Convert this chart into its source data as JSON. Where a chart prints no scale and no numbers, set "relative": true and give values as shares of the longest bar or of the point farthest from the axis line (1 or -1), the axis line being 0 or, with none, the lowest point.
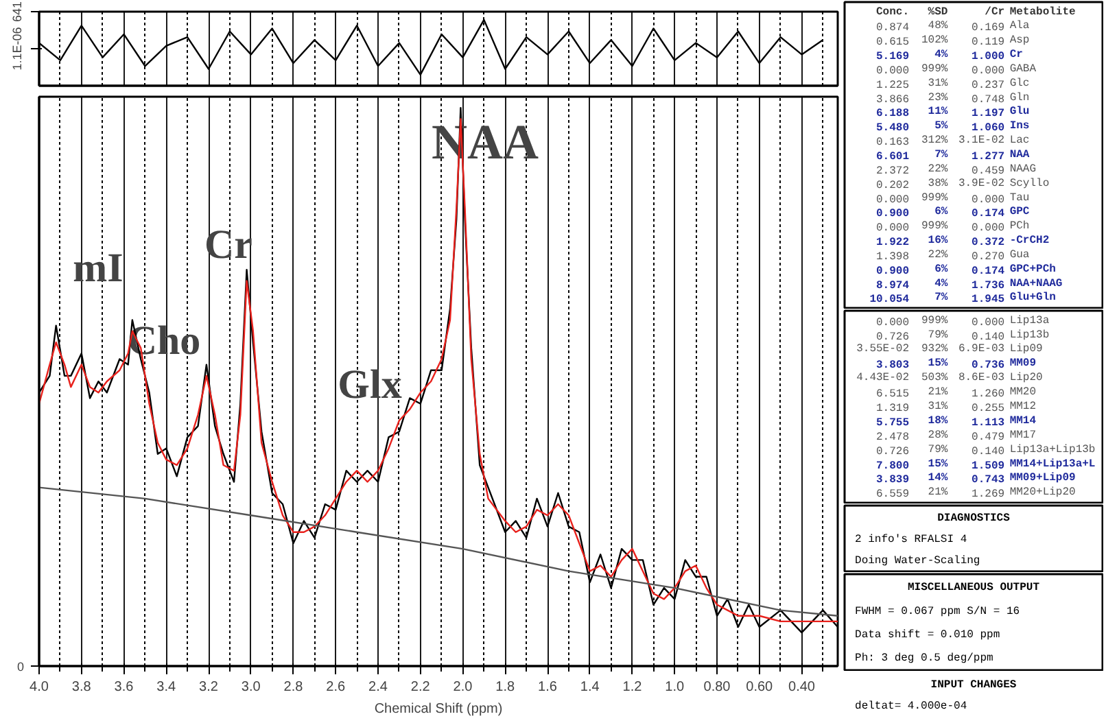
{
  "chart_data": [
    {
      "type": "line",
      "x": [
        4.0,
        3.9,
        3.8,
        3.7,
        3.6,
        3.5,
        3.4,
        3.3,
        3.2,
        3.1,
        3.0,
        2.9,
        2.8,
        2.7,
        2.6,
        2.5,
        2.4,
        2.3,
        2.2,
        2.1,
        2.0,
        1.9,
        1.8,
        1.7,
        1.6,
        1.5,
        1.4,
        1.3,
        1.2,
        1.1,
        1.0,
        0.9,
        0.8,
        0.7,
        0.6,
        0.5,
        0.4,
        0.3
      ],
      "series": [
        {
          "color": "#000000",
          "values": [
            100,
            -200,
            400,
            -150,
            250,
            -300,
            50,
            200,
            -350,
            300,
            -100,
            350,
            -250,
            150,
            -200,
            400,
            -300,
            100,
            -450,
            250,
            -150,
            500,
            -350,
            200,
            -100,
            300,
            -250,
            150,
            -300,
            350,
            -200,
            100,
            -150,
            300,
            -250,
            200,
            -100,
            150
          ]
        }
      ],
      "xlim": [
        4.0,
        0.23
      ],
      "ylim": [
        -641,
        641
      ],
      "yticks": [
        641,
        {
          "value": 1.1e-06,
          "label": "1.1E-06"
        }
      ],
      "xticks": [
        4.0,
        3.8,
        3.6,
        3.4,
        3.2,
        3.0,
        2.8,
        2.6,
        2.4,
        2.2,
        2.0,
        1.8,
        1.6,
        1.4,
        1.2,
        1.0,
        0.8,
        0.6,
        0.4,
        {
          "value": 3.9,
          "label": null
        },
        {
          "value": 3.7,
          "label": null
        },
        {
          "value": 3.5,
          "label": null
        },
        {
          "value": 3.3,
          "label": null
        },
        {
          "value": 3.1,
          "label": null
        },
        {
          "value": 2.9,
          "label": null
        },
        {
          "value": 2.7,
          "label": null
        },
        {
          "value": 2.5,
          "label": null
        },
        {
          "value": 2.3,
          "label": null
        },
        {
          "value": 2.1,
          "label": null
        },
        {
          "value": 1.9,
          "label": null
        },
        {
          "value": 1.7,
          "label": null
        },
        {
          "value": 1.5,
          "label": null
        },
        {
          "value": 1.3,
          "label": null
        },
        {
          "value": 1.1,
          "label": null
        },
        {
          "value": 0.9,
          "label": null
        },
        {
          "value": 0.7,
          "label": null
        },
        {
          "value": 0.5,
          "label": null
        },
        {
          "value": 0.3,
          "label": null
        }
      ],
      "tick_labels": "y",
      "grid": "x"
    },
    {
      "type": "line",
      "relative": true,
      "xlabel": "Chemical Shift (ppm)",
      "xlim": [
        4.0,
        0.23
      ],
      "xticks": [
        {
          "value": 4.0,
          "label": "4.0"
        },
        3.8,
        3.6,
        3.4,
        3.2,
        {
          "value": 3.0,
          "label": "3.0"
        },
        2.8,
        2.6,
        2.4,
        2.2,
        {
          "value": 2.0,
          "label": "2.0"
        },
        1.8,
        1.6,
        1.4,
        1.2,
        {
          "value": 1.0,
          "label": "1.0"
        },
        {
          "value": 0.8,
          "label": "0.80"
        },
        {
          "value": 0.6,
          "label": "0.60"
        },
        {
          "value": 0.4,
          "label": "0.40"
        },
        {
          "value": 3.9,
          "label": null
        },
        {
          "value": 3.7,
          "label": null
        },
        {
          "value": 3.5,
          "label": null
        },
        {
          "value": 3.3,
          "label": null
        },
        {
          "value": 3.1,
          "label": null
        },
        {
          "value": 2.9,
          "label": null
        },
        {
          "value": 2.7,
          "label": null
        },
        {
          "value": 2.5,
          "label": null
        },
        {
          "value": 2.3,
          "label": null
        },
        {
          "value": 2.1,
          "label": null
        },
        {
          "value": 1.9,
          "label": null
        },
        {
          "value": 1.7,
          "label": null
        },
        {
          "value": 1.5,
          "label": null
        },
        {
          "value": 1.3,
          "label": null
        },
        {
          "value": 1.1,
          "label": null
        },
        {
          "value": 0.9,
          "label": null
        },
        {
          "value": 0.7,
          "label": null
        },
        {
          "value": 0.5,
          "label": null
        },
        {
          "value": 0.3,
          "label": null
        }
      ],
      "grid": "x",
      "x": [
        4.0,
        3.95,
        3.92,
        3.88,
        3.85,
        3.8,
        3.76,
        3.72,
        3.68,
        3.62,
        3.58,
        3.56,
        3.52,
        3.48,
        3.44,
        3.4,
        3.35,
        3.3,
        3.25,
        3.21,
        3.17,
        3.13,
        3.08,
        3.05,
        3.02,
        2.99,
        2.95,
        2.9,
        2.85,
        2.8,
        2.75,
        2.7,
        2.65,
        2.6,
        2.55,
        2.5,
        2.45,
        2.4,
        2.35,
        2.3,
        2.25,
        2.2,
        2.15,
        2.1,
        2.06,
        2.03,
        2.01,
        1.99,
        1.96,
        1.92,
        1.88,
        1.8,
        1.75,
        1.7,
        1.65,
        1.6,
        1.55,
        1.5,
        1.45,
        1.4,
        1.35,
        1.3,
        1.25,
        1.2,
        1.15,
        1.1,
        1.05,
        1.0,
        0.95,
        0.9,
        0.85,
        0.8,
        0.75,
        0.7,
        0.65,
        0.6,
        0.5,
        0.4,
        0.3,
        0.23
      ],
      "series": [
        {
          "color": "#000000",
          "values": [
            0.49,
            0.52,
            0.61,
            0.52,
            0.52,
            0.56,
            0.48,
            0.51,
            0.49,
            0.55,
            0.54,
            0.62,
            0.55,
            0.49,
            0.38,
            0.39,
            0.34,
            0.41,
            0.43,
            0.54,
            0.43,
            0.38,
            0.33,
            0.47,
            0.71,
            0.58,
            0.42,
            0.31,
            0.29,
            0.22,
            0.26,
            0.23,
            0.29,
            0.28,
            0.35,
            0.33,
            0.35,
            0.33,
            0.41,
            0.42,
            0.48,
            0.47,
            0.53,
            0.53,
            0.64,
            0.8,
            1.0,
            0.8,
            0.57,
            0.36,
            0.32,
            0.24,
            0.26,
            0.23,
            0.3,
            0.25,
            0.31,
            0.25,
            0.24,
            0.15,
            0.2,
            0.14,
            0.21,
            0.19,
            0.19,
            0.11,
            0.14,
            0.12,
            0.19,
            0.16,
            0.16,
            0.09,
            0.12,
            0.07,
            0.11,
            0.07,
            0.1,
            0.06,
            0.1,
            0.07
          ]
        },
        {
          "color": "#e8211c",
          "values": [
            0.47,
            0.54,
            0.58,
            0.54,
            0.5,
            0.54,
            0.5,
            0.49,
            0.51,
            0.53,
            0.56,
            0.6,
            0.57,
            0.47,
            0.4,
            0.37,
            0.36,
            0.39,
            0.45,
            0.52,
            0.45,
            0.36,
            0.35,
            0.45,
            0.69,
            0.6,
            0.4,
            0.33,
            0.27,
            0.24,
            0.24,
            0.25,
            0.27,
            0.3,
            0.33,
            0.35,
            0.33,
            0.35,
            0.39,
            0.44,
            0.46,
            0.49,
            0.51,
            0.55,
            0.62,
            0.82,
            0.98,
            0.82,
            0.55,
            0.38,
            0.3,
            0.26,
            0.24,
            0.25,
            0.28,
            0.27,
            0.29,
            0.27,
            0.22,
            0.17,
            0.18,
            0.16,
            0.19,
            0.21,
            0.17,
            0.13,
            0.12,
            0.14,
            0.17,
            0.18,
            0.14,
            0.11,
            0.1,
            0.09,
            0.09,
            0.09,
            0.08,
            0.08,
            0.08,
            0.08
          ]
        },
        {
          "color": "#555555",
          "x": [
            4.0,
            3.5,
            3.0,
            2.5,
            2.0,
            1.5,
            1.0,
            0.5,
            0.23
          ],
          "values": [
            0.32,
            0.3,
            0.27,
            0.24,
            0.21,
            0.17,
            0.14,
            0.1,
            0.09
          ]
        }
      ],
      "annotations": [
        "NAA",
        "mI",
        "Cho",
        "Cr",
        "Glx",
        "0"
      ]
    },
    {
      "type": "other",
      "cell_labels": [
        [
          "Conc.",
          "%SD",
          "/Cr",
          "Metabolite"
        ],
        [
          "0.874",
          "48%",
          "0.169",
          "Ala"
        ],
        [
          "0.615",
          "102%",
          "0.119",
          "Asp"
        ],
        [
          "5.169",
          "4%",
          "1.000",
          "Cr"
        ],
        [
          "0.000",
          "999%",
          "0.000",
          "GABA"
        ],
        [
          "1.225",
          "31%",
          "0.237",
          "Glc"
        ],
        [
          "3.866",
          "23%",
          "0.748",
          "Gln"
        ],
        [
          "6.188",
          "11%",
          "1.197",
          "Glu"
        ],
        [
          "5.480",
          "5%",
          "1.060",
          "Ins"
        ],
        [
          "0.163",
          "312%",
          "3.1E-02",
          "Lac"
        ],
        [
          "6.601",
          "7%",
          "1.277",
          "NAA"
        ],
        [
          "2.372",
          "22%",
          "0.459",
          "NAAG"
        ],
        [
          "0.202",
          "38%",
          "3.9E-02",
          "Scyllo"
        ],
        [
          "0.000",
          "999%",
          "0.000",
          "Tau"
        ],
        [
          "0.900",
          "6%",
          "0.174",
          "GPC"
        ],
        [
          "0.000",
          "999%",
          "0.000",
          "PCh"
        ],
        [
          "1.922",
          "16%",
          "0.372",
          "-CrCH2"
        ],
        [
          "1.398",
          "22%",
          "0.270",
          "Gua"
        ],
        [
          "0.900",
          "6%",
          "0.174",
          "GPC+PCh"
        ],
        [
          "8.974",
          "4%",
          "1.736",
          "NAA+NAAG"
        ],
        [
          "10.054",
          "7%",
          "1.945",
          "Glu+Gln"
        ]
      ],
      "colors": [
        "#333333",
        "#555555",
        "#555555",
        "#1f2a9c",
        "#555555",
        "#555555",
        "#555555",
        "#1f2a9c",
        "#1f2a9c",
        "#555555",
        "#1f2a9c",
        "#555555",
        "#555555",
        "#555555",
        "#1f2a9c",
        "#555555",
        "#1f2a9c",
        "#555555",
        "#1f2a9c",
        "#1f2a9c",
        "#1f2a9c"
      ]
    },
    {
      "type": "other",
      "cell_labels": [
        [
          "0.000",
          "999%",
          "0.000",
          "Lip13a"
        ],
        [
          "0.726",
          "79%",
          "0.140",
          "Lip13b"
        ],
        [
          "3.55E-02",
          "932%",
          "6.9E-03",
          "Lip09"
        ],
        [
          "3.803",
          "15%",
          "0.736",
          "MM09"
        ],
        [
          "4.43E-02",
          "503%",
          "8.6E-03",
          "Lip20"
        ],
        [
          "6.515",
          "21%",
          "1.260",
          "MM20"
        ],
        [
          "1.319",
          "31%",
          "0.255",
          "MM12"
        ],
        [
          "5.755",
          "18%",
          "1.113",
          "MM14"
        ],
        [
          "2.478",
          "28%",
          "0.479",
          "MM17"
        ],
        [
          "0.726",
          "79%",
          "0.140",
          "Lip13a+Lip13b"
        ],
        [
          "7.800",
          "15%",
          "1.509",
          "MM14+Lip13a+L"
        ],
        [
          "3.839",
          "14%",
          "0.743",
          "MM09+Lip09"
        ],
        [
          "6.559",
          "21%",
          "1.269",
          "MM20+Lip20"
        ]
      ],
      "colors": [
        "#555555",
        "#555555",
        "#555555",
        "#1f2a9c",
        "#555555",
        "#555555",
        "#555555",
        "#1f2a9c",
        "#555555",
        "#555555",
        "#1f2a9c",
        "#1f2a9c",
        "#555555"
      ]
    },
    {
      "type": "other",
      "title": "DIAGNOSTICS",
      "annotations": [
        "2 info's    RFALSI  4",
        "Doing Water-Scaling"
      ]
    },
    {
      "type": "other",
      "title": "MISCELLANEOUS OUTPUT",
      "annotations": [
        "FWHM = 0.067 ppm      S/N = 16",
        "Data shift = 0.010 ppm",
        "Ph:   3 deg          0.5 deg/ppm"
      ]
    },
    {
      "type": "other",
      "title": "INPUT CHANGES",
      "annotations": [
        "deltat= 4.000e-04"
      ]
    }
  ]
}
